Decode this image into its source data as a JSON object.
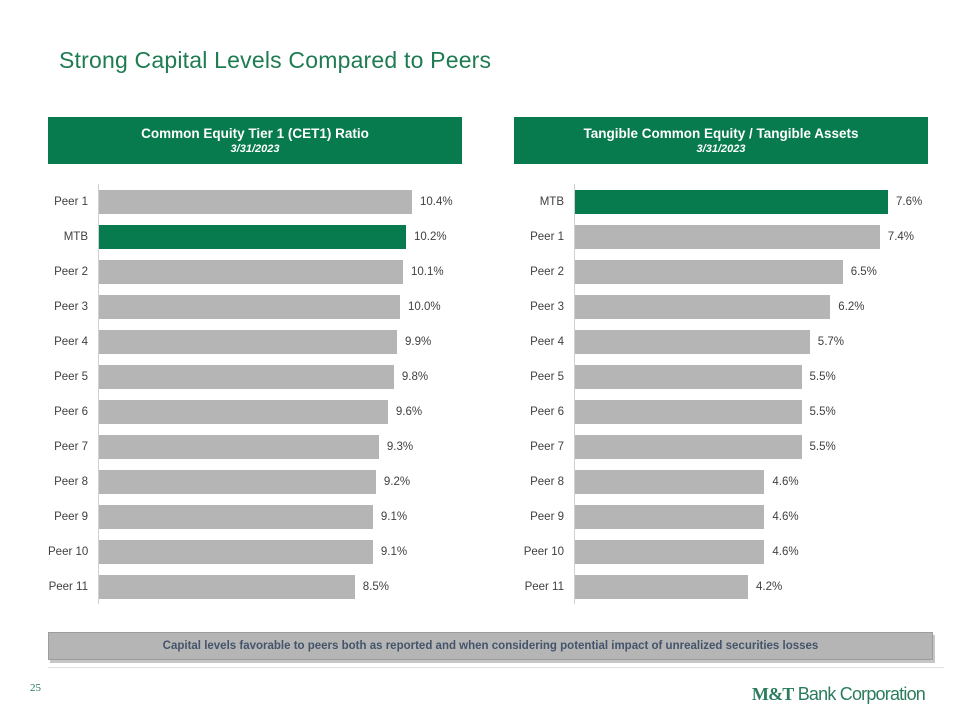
{
  "slide": {
    "title": "Strong Capital Levels Compared to Peers",
    "page_number": "25",
    "footer_note": "Capital levels favorable to peers both as reported and when considering potential impact of unrealized securities losses",
    "logo": {
      "mark": "M&T",
      "text": "Bank Corporation"
    }
  },
  "colors": {
    "brand_green": "#077b4e",
    "title_green": "#1e7b52",
    "bar_gray": "#b5b5b5",
    "banner_bg": "#b5b5b5",
    "banner_text": "#44546a"
  },
  "chart_data": [
    {
      "type": "bar",
      "orientation": "horizontal",
      "title": "Common Equity Tier 1 (CET1) Ratio",
      "subtitle": "3/31/2023",
      "categories": [
        "Peer 1",
        "MTB",
        "Peer 2",
        "Peer 3",
        "Peer 4",
        "Peer 5",
        "Peer 6",
        "Peer 7",
        "Peer 8",
        "Peer 9",
        "Peer 10",
        "Peer 11"
      ],
      "values": [
        10.4,
        10.2,
        10.1,
        10.0,
        9.9,
        9.8,
        9.6,
        9.3,
        9.2,
        9.1,
        9.1,
        8.5
      ],
      "labels": [
        "10.4%",
        "10.2%",
        "10.1%",
        "10.0%",
        "9.9%",
        "9.8%",
        "9.6%",
        "9.3%",
        "9.2%",
        "9.1%",
        "9.1%",
        "8.5%"
      ],
      "highlight_category": "MTB",
      "xlim": [
        0,
        10.4
      ],
      "grid": false,
      "legend": "none"
    },
    {
      "type": "bar",
      "orientation": "horizontal",
      "title": "Tangible Common Equity / Tangible Assets",
      "subtitle": "3/31/2023",
      "categories": [
        "MTB",
        "Peer 1",
        "Peer 2",
        "Peer 3",
        "Peer 4",
        "Peer 5",
        "Peer 6",
        "Peer 7",
        "Peer 8",
        "Peer 9",
        "Peer 10",
        "Peer 11"
      ],
      "values": [
        7.6,
        7.4,
        6.5,
        6.2,
        5.7,
        5.5,
        5.5,
        5.5,
        4.6,
        4.6,
        4.6,
        4.2
      ],
      "labels": [
        "7.6%",
        "7.4%",
        "6.5%",
        "6.2%",
        "5.7%",
        "5.5%",
        "5.5%",
        "5.5%",
        "4.6%",
        "4.6%",
        "4.6%",
        "4.2%"
      ],
      "highlight_category": "MTB",
      "xlim": [
        0,
        7.6
      ],
      "grid": false,
      "legend": "none"
    }
  ]
}
